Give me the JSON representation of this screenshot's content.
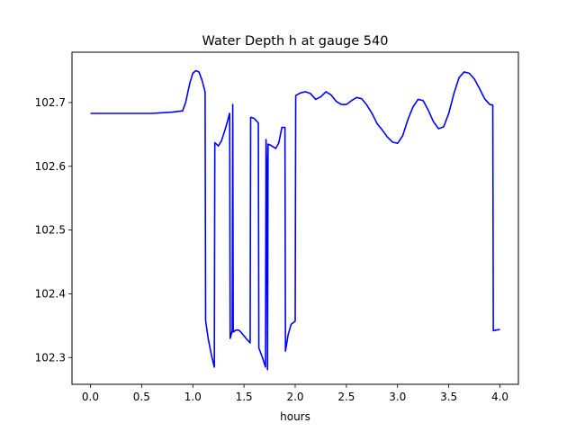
{
  "chart_data": {
    "type": "line",
    "title": "Water Depth h at gauge 540",
    "xlabel": "hours",
    "ylabel": "",
    "xlim": [
      -0.18,
      4.18
    ],
    "ylim": [
      102.258,
      102.779
    ],
    "xticks": [
      0.0,
      0.5,
      1.0,
      1.5,
      2.0,
      2.5,
      3.0,
      3.5,
      4.0
    ],
    "xtick_labels": [
      "0.0",
      "0.5",
      "1.0",
      "1.5",
      "2.0",
      "2.5",
      "3.0",
      "3.5",
      "4.0"
    ],
    "yticks": [
      102.3,
      102.4,
      102.5,
      102.6,
      102.7
    ],
    "ytick_labels": [
      "102.3",
      "102.4",
      "102.5",
      "102.6",
      "102.7"
    ],
    "grid": false,
    "series": [
      {
        "color": "#0000ff",
        "x": [
          0.0,
          0.3,
          0.6,
          0.8,
          0.9,
          0.93,
          0.97,
          1.0,
          1.03,
          1.06,
          1.09,
          1.12,
          1.125,
          1.15,
          1.18,
          1.21,
          1.215,
          1.25,
          1.28,
          1.32,
          1.36,
          1.365,
          1.385,
          1.39,
          1.395,
          1.42,
          1.425,
          1.45,
          1.48,
          1.52,
          1.56,
          1.565,
          1.6,
          1.64,
          1.645,
          1.68,
          1.71,
          1.715,
          1.72,
          1.73,
          1.735,
          1.74,
          1.75,
          1.78,
          1.81,
          1.84,
          1.87,
          1.9,
          1.905,
          1.93,
          1.96,
          2.0,
          2.005,
          2.05,
          2.1,
          2.15,
          2.2,
          2.25,
          2.3,
          2.35,
          2.4,
          2.45,
          2.5,
          2.55,
          2.6,
          2.65,
          2.7,
          2.75,
          2.8,
          2.85,
          2.9,
          2.95,
          3.0,
          3.05,
          3.1,
          3.15,
          3.2,
          3.25,
          3.3,
          3.35,
          3.4,
          3.45,
          3.5,
          3.55,
          3.6,
          3.65,
          3.7,
          3.75,
          3.8,
          3.85,
          3.9,
          3.93,
          3.935,
          3.96,
          4.0
        ],
        "y": [
          102.683,
          102.683,
          102.683,
          102.685,
          102.687,
          102.7,
          102.73,
          102.746,
          102.75,
          102.748,
          102.735,
          102.717,
          102.358,
          102.33,
          102.305,
          102.285,
          102.637,
          102.632,
          102.64,
          102.66,
          102.683,
          102.33,
          102.342,
          102.697,
          102.34,
          102.343,
          102.343,
          102.343,
          102.338,
          102.33,
          102.323,
          102.677,
          102.675,
          102.668,
          102.315,
          102.3,
          102.285,
          102.642,
          102.61,
          102.281,
          102.635,
          102.634,
          102.634,
          102.631,
          102.628,
          102.637,
          102.661,
          102.661,
          102.31,
          102.335,
          102.352,
          102.357,
          102.711,
          102.715,
          102.717,
          102.714,
          102.705,
          102.709,
          102.717,
          102.712,
          102.702,
          102.697,
          102.697,
          102.703,
          102.708,
          102.706,
          102.696,
          102.683,
          102.667,
          102.657,
          102.646,
          102.638,
          102.636,
          102.648,
          102.673,
          102.693,
          102.705,
          102.703,
          102.688,
          102.67,
          102.659,
          102.662,
          102.683,
          102.714,
          102.739,
          102.748,
          102.746,
          102.737,
          102.722,
          102.706,
          102.697,
          102.696,
          102.342,
          102.343,
          102.344
        ]
      }
    ]
  }
}
